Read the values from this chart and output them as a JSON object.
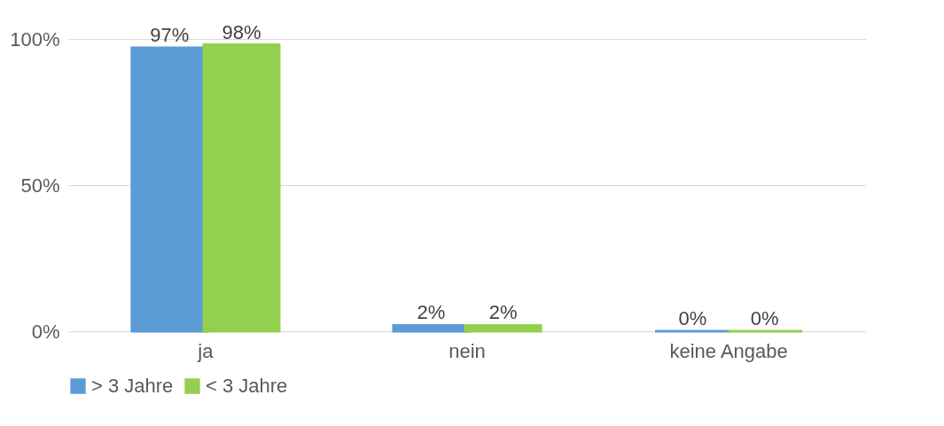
{
  "chart_data": {
    "type": "bar",
    "categories": [
      "ja",
      "nein",
      "keine Angabe"
    ],
    "series": [
      {
        "name": "> 3 Jahre",
        "color": "#5b9bd5",
        "values": [
          97,
          2,
          0
        ],
        "value_labels": [
          "97%",
          "2%",
          "0%"
        ]
      },
      {
        "name": "< 3 Jahre",
        "color": "#92d050",
        "values": [
          98,
          2,
          0
        ],
        "value_labels": [
          "98%",
          "2%",
          "0%"
        ]
      }
    ],
    "ylim": [
      0,
      100
    ],
    "yticks": [
      {
        "value": 0,
        "label": "0%"
      },
      {
        "value": 50,
        "label": "50%"
      },
      {
        "value": 100,
        "label": "100%"
      }
    ],
    "grid": "y",
    "legend": "bottom"
  }
}
